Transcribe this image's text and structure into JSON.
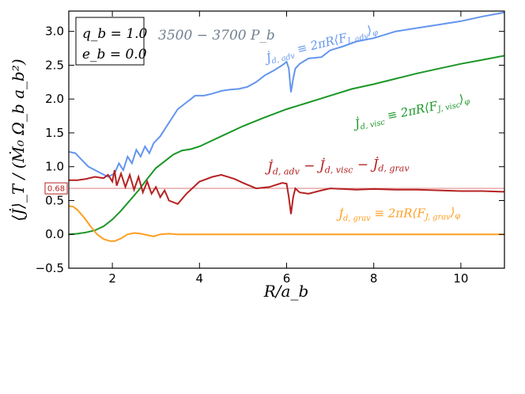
{
  "chart_data": {
    "type": "line",
    "xlabel": "R/a_b",
    "ylabel": "⟨J̇⟩_T / (Ṁ₀ Ω_b a_b²)",
    "xlim": [
      1.0,
      11.0
    ],
    "ylim": [
      -0.5,
      3.3
    ],
    "xticks": [
      2,
      4,
      6,
      8,
      10
    ],
    "yticks": [
      -0.5,
      0.0,
      0.5,
      1.0,
      1.5,
      2.0,
      2.5,
      3.0
    ],
    "xtick_labels": [
      "2",
      "4",
      "6",
      "8",
      "10"
    ],
    "ytick_labels": [
      "−0.5",
      "0.0",
      "0.5",
      "1.0",
      "1.5",
      "2.0",
      "2.5",
      "3.0"
    ],
    "grid": false,
    "params_box": {
      "q_line": "q_b = 1.0",
      "e_line": "e_b = 0.0"
    },
    "time_window": "3500 − 3700 P_b",
    "reference_line": {
      "y": 0.68,
      "label": "0.68",
      "color": "#e08c8c"
    },
    "series": [
      {
        "name": "J̇_d,adv ≡ 2πR⟨F_J,adv⟩_φ",
        "color": "#6495ed",
        "x": [
          1.0,
          1.15,
          1.3,
          1.45,
          1.6,
          1.75,
          1.9,
          2.05,
          2.15,
          2.25,
          2.35,
          2.45,
          2.55,
          2.65,
          2.75,
          2.85,
          2.95,
          3.1,
          3.3,
          3.5,
          3.7,
          3.9,
          4.1,
          4.3,
          4.5,
          4.7,
          4.9,
          5.1,
          5.3,
          5.5,
          5.7,
          5.9,
          6.0,
          6.05,
          6.1,
          6.15,
          6.2,
          6.3,
          6.5,
          6.8,
          7.0,
          7.3,
          7.6,
          8.0,
          8.5,
          9.0,
          9.5,
          10.0,
          10.5,
          11.0
        ],
        "y": [
          1.22,
          1.2,
          1.1,
          1.0,
          0.95,
          0.9,
          0.85,
          0.9,
          1.05,
          0.95,
          1.15,
          1.05,
          1.25,
          1.15,
          1.3,
          1.2,
          1.35,
          1.45,
          1.65,
          1.85,
          1.95,
          2.05,
          2.05,
          2.08,
          2.12,
          2.14,
          2.15,
          2.18,
          2.25,
          2.35,
          2.42,
          2.5,
          2.55,
          2.45,
          2.1,
          2.3,
          2.45,
          2.52,
          2.6,
          2.62,
          2.72,
          2.78,
          2.85,
          2.9,
          3.0,
          3.05,
          3.1,
          3.15,
          3.22,
          3.28
        ]
      },
      {
        "name": "J̇_d,visc ≡ 2πR⟨F_J,visc⟩_φ",
        "color": "#1a9626",
        "x": [
          1.0,
          1.2,
          1.4,
          1.6,
          1.8,
          2.0,
          2.2,
          2.4,
          2.6,
          2.8,
          3.0,
          3.2,
          3.4,
          3.6,
          3.8,
          4.0,
          4.5,
          5.0,
          5.5,
          6.0,
          6.5,
          7.0,
          7.5,
          8.0,
          8.5,
          9.0,
          9.5,
          10.0,
          10.5,
          11.0
        ],
        "y": [
          0.0,
          0.01,
          0.03,
          0.06,
          0.12,
          0.22,
          0.35,
          0.5,
          0.65,
          0.82,
          0.98,
          1.08,
          1.18,
          1.24,
          1.26,
          1.3,
          1.45,
          1.6,
          1.73,
          1.85,
          1.95,
          2.05,
          2.15,
          2.22,
          2.3,
          2.38,
          2.45,
          2.52,
          2.58,
          2.64
        ]
      },
      {
        "name": "J̇_d,adv − J̇_d,visc − J̇_d,grav",
        "color": "#b52222",
        "x": [
          1.0,
          1.2,
          1.4,
          1.6,
          1.8,
          1.9,
          2.0,
          2.05,
          2.1,
          2.2,
          2.3,
          2.4,
          2.5,
          2.6,
          2.7,
          2.8,
          2.9,
          3.0,
          3.1,
          3.2,
          3.3,
          3.5,
          3.7,
          4.0,
          4.3,
          4.5,
          4.8,
          5.0,
          5.3,
          5.6,
          5.9,
          6.0,
          6.05,
          6.1,
          6.15,
          6.2,
          6.3,
          6.5,
          6.8,
          7.0,
          7.3,
          7.6,
          8.0,
          8.5,
          9.0,
          9.5,
          10.0,
          10.5,
          11.0
        ],
        "y": [
          0.8,
          0.8,
          0.82,
          0.85,
          0.83,
          0.88,
          0.78,
          0.95,
          0.72,
          0.9,
          0.7,
          0.88,
          0.66,
          0.85,
          0.62,
          0.78,
          0.6,
          0.7,
          0.55,
          0.65,
          0.5,
          0.45,
          0.6,
          0.78,
          0.85,
          0.88,
          0.82,
          0.76,
          0.68,
          0.7,
          0.76,
          0.75,
          0.55,
          0.3,
          0.55,
          0.68,
          0.62,
          0.6,
          0.65,
          0.68,
          0.67,
          0.66,
          0.67,
          0.66,
          0.66,
          0.65,
          0.64,
          0.64,
          0.63
        ]
      },
      {
        "name": "J̇_d,grav ≡ 2πR⟨F_J,grav⟩_φ",
        "color": "#ff9e1f",
        "x": [
          1.0,
          1.1,
          1.2,
          1.35,
          1.5,
          1.65,
          1.8,
          1.95,
          2.05,
          2.2,
          2.35,
          2.5,
          2.65,
          2.8,
          2.95,
          3.1,
          3.3,
          3.5,
          4.0,
          5.0,
          6.0,
          7.0,
          8.0,
          9.0,
          10.0,
          11.0
        ],
        "y": [
          0.42,
          0.41,
          0.36,
          0.25,
          0.12,
          0.0,
          -0.07,
          -0.1,
          -0.1,
          -0.06,
          0.0,
          0.02,
          0.01,
          -0.01,
          -0.03,
          0.0,
          0.01,
          0.0,
          0.0,
          0.0,
          0.0,
          0.0,
          0.0,
          0.0,
          0.0,
          0.0
        ]
      }
    ],
    "annotations": [
      {
        "id": "adv",
        "parts": [
          "J̇",
          "d, adv",
          " ≡ 2πR⟨F",
          "J, adv",
          "⟩",
          "φ"
        ],
        "color": "#6495ed"
      },
      {
        "id": "visc",
        "parts": [
          "J̇",
          "d, visc",
          " ≡ 2πR⟨F",
          "J, visc",
          "⟩",
          "φ"
        ],
        "color": "#1a9626"
      },
      {
        "id": "net",
        "parts": [
          "J̇",
          "d, adv",
          " − J̇",
          "d, visc",
          " − J̇",
          "d, grav"
        ],
        "color": "#b52222"
      },
      {
        "id": "grav",
        "parts": [
          "J̇",
          "d, grav",
          " ≡ 2πR⟨F",
          "J, grav",
          "⟩",
          "φ"
        ],
        "color": "#ff9e1f"
      }
    ]
  }
}
